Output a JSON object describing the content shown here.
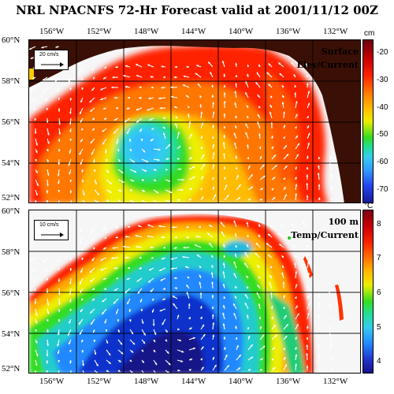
{
  "title": "NRL NPACNFS 72-Hr Forecast valid at 2001/11/12 00Z",
  "lon_labels": [
    "156°W",
    "152°W",
    "148°W",
    "144°W",
    "140°W",
    "136°W",
    "132°W"
  ],
  "lat_labels": [
    "60°N",
    "58°N",
    "56°N",
    "54°N",
    "52°N"
  ],
  "panels": [
    {
      "label_line1": "Surface",
      "label_line2": "Elev/Current",
      "scale_label": "20 cm/s",
      "colorbar": {
        "unit": "cm",
        "ticks": [
          "-20",
          "-30",
          "-40",
          "-50",
          "-60",
          "-70"
        ],
        "range": [
          -75,
          -15
        ]
      }
    },
    {
      "label_line1": "100 m",
      "label_line2": "Temp/Current",
      "scale_label": "10 cm/s",
      "colorbar": {
        "unit": "°C",
        "ticks": [
          "8",
          "7",
          "6",
          "5",
          "4"
        ],
        "range": [
          3.6,
          8.4
        ]
      }
    }
  ],
  "colors": {
    "land": "#3a1006",
    "background": "#ffffff",
    "vector": "#ffffff"
  }
}
